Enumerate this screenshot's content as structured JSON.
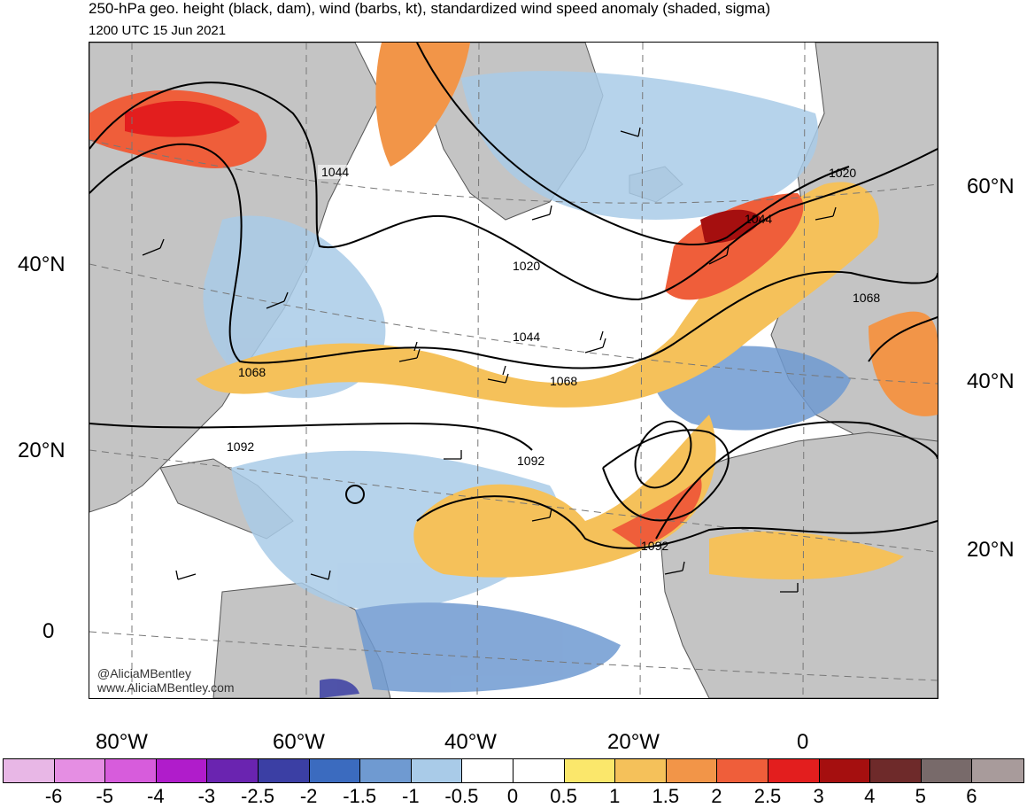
{
  "title": "250-hPa geo. height (black, dam), wind (barbs, kt), standardized wind speed anomaly (shaded, sigma)",
  "valid_time": "1200 UTC 15 Jun 2021",
  "credit_handle": "@AliciaMBentley",
  "credit_url": "www.AliciaMBentley.com",
  "lat_labels_left": [
    "40°N",
    "20°N",
    "0"
  ],
  "lat_labels_right": [
    "60°N",
    "40°N",
    "20°N"
  ],
  "lon_labels": [
    "80°W",
    "60°W",
    "40°W",
    "20°W",
    "0"
  ],
  "contour_labels": [
    "1044",
    "1020",
    "1044",
    "1068",
    "1068",
    "1092",
    "1092",
    "1092",
    "1020",
    "1044",
    "1068"
  ],
  "colorbar": {
    "labels": [
      "-6",
      "-5",
      "-4",
      "-3",
      "-2.5",
      "-2",
      "-1.5",
      "-1",
      "-0.5",
      "0",
      "0.5",
      "1",
      "1.5",
      "2",
      "2.5",
      "3",
      "4",
      "5",
      "6"
    ],
    "colors": [
      "#e8b7e6",
      "#e58ee3",
      "#d75cdc",
      "#b01ccb",
      "#6a24b0",
      "#3b3fa4",
      "#3b6bbf",
      "#6f9ad1",
      "#a9cbe8",
      "#ffffff",
      "#ffffff",
      "#fbe76b",
      "#f5c15a",
      "#f29548",
      "#ef5e3a",
      "#e31e1e",
      "#a50f0f",
      "#6e2a2a",
      "#786a6a",
      "#a89b9b"
    ]
  },
  "colors": {
    "land": "#c4c4c4",
    "negative_anomaly": "#a9cbe8",
    "positive_anomaly": "#f5c15a",
    "jet_core": "#e31e1e",
    "contour": "#000000"
  }
}
